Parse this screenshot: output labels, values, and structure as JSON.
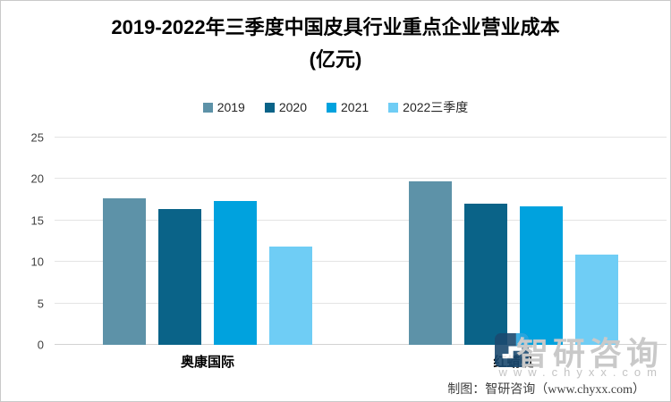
{
  "title": {
    "line1": "2019-2022年三季度中国皮具行业重点企业营业成本",
    "line2": "(亿元)"
  },
  "chart_data": {
    "type": "bar",
    "categories": [
      "奥康国际",
      "红蜻蜓"
    ],
    "series": [
      {
        "name": "2019",
        "color": "#5d92a8",
        "values": [
          17.7,
          19.7
        ]
      },
      {
        "name": "2020",
        "color": "#0a6388",
        "values": [
          16.4,
          17.0
        ]
      },
      {
        "name": "2021",
        "color": "#00a2de",
        "values": [
          17.3,
          16.7
        ]
      },
      {
        "name": "2022三季度",
        "color": "#6fcdf5",
        "values": [
          11.9,
          10.9
        ]
      }
    ],
    "title": "2019-2022年三季度中国皮具行业重点企业营业成本(亿元)",
    "xlabel": "",
    "ylabel": "",
    "ylim": [
      0,
      25
    ],
    "yticks": [
      0,
      5,
      10,
      15,
      20,
      25
    ],
    "grid": true,
    "legend_position": "top"
  },
  "watermark": {
    "brand": "智研咨询",
    "url": "www.chyxx.com"
  },
  "footer": {
    "credit": "制图：智研咨询（www.chyxx.com）"
  }
}
